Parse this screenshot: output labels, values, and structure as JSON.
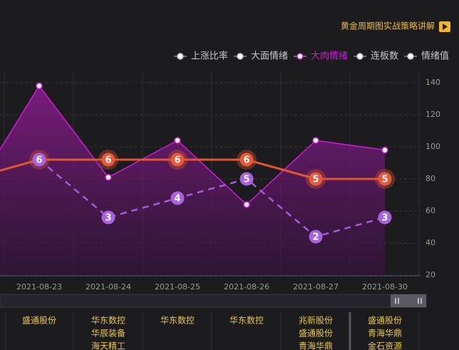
{
  "header": {
    "title": "黄金周期图实战策略讲解"
  },
  "chart_data": {
    "type": "line",
    "legend": [
      "上涨比率",
      "大面情绪",
      "大肉情绪",
      "连板数",
      "情绪值"
    ],
    "legend_active": 2,
    "categories": [
      null,
      "2021-08-23",
      "2021-08-24",
      "2021-08-25",
      "2021-08-26",
      "2021-08-27",
      "2021-08-30"
    ],
    "series": [
      {
        "legend": 2,
        "color": "#d21bd6",
        "area": true,
        "values": [
          68,
          138,
          81,
          104,
          64,
          104,
          98
        ]
      },
      {
        "legend": 3,
        "color": "#e2552f",
        "axis": "y2",
        "labels": true,
        "values": [
          5,
          6,
          6,
          6,
          6,
          5,
          5
        ]
      },
      {
        "legend": 4,
        "color": "#a45cd8",
        "axis": "y2",
        "labels": true,
        "dashed": true,
        "values": [
          null,
          6,
          3,
          4,
          5,
          2,
          3
        ]
      }
    ],
    "ylim": [
      20,
      140
    ],
    "yticks": [
      20,
      40,
      60,
      80,
      100,
      120,
      140
    ],
    "y2lim": [
      0,
      10
    ],
    "grid": true
  },
  "stocks": [
    [
      "盛通股份"
    ],
    [
      "华东数控",
      "华辰装备",
      "海天精工"
    ],
    [
      "华东数控"
    ],
    [
      "华东数控"
    ],
    [
      "兆新股份",
      "盛通股份",
      "青海华鼎"
    ],
    [
      "盛通股份",
      "青海华鼎",
      "金石资源"
    ]
  ]
}
